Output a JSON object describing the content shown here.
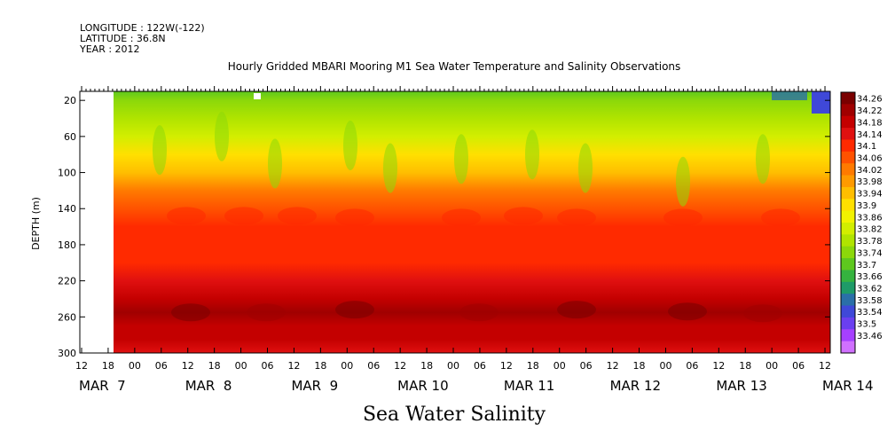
{
  "header": {
    "longitude": "LONGITUDE : 122W(-122)",
    "latitude": "LATITUDE : 36.8N",
    "year": "YEAR : 2012"
  },
  "footer_label": "Sea Water Salinity",
  "chart_data": {
    "type": "heatmap",
    "title": "Hourly Gridded MBARI Mooring M1 Sea Water Temperature and Salinity Observations",
    "ylabel": "DEPTH (m)",
    "xlabel": "",
    "ylim": [
      300,
      10
    ],
    "y_ticks": [
      20,
      60,
      100,
      140,
      180,
      220,
      260,
      300
    ],
    "x_hour_ticks": [
      "12",
      "18",
      "00",
      "06",
      "12",
      "18",
      "00",
      "06",
      "12",
      "18",
      "00",
      "06",
      "12",
      "18",
      "00",
      "06",
      "12",
      "18",
      "00",
      "06",
      "12",
      "18",
      "00",
      "06",
      "12",
      "18",
      "00",
      "06",
      "12"
    ],
    "x_day_labels": [
      "MAR  7",
      "MAR  8",
      "MAR  9",
      "MAR 10",
      "MAR 11",
      "MAR 12",
      "MAR 13",
      "MAR 14"
    ],
    "data_start": "2012-03-07 18:00",
    "colorbar": {
      "levels": [
        34.26,
        34.22,
        34.18,
        34.14,
        34.1,
        34.06,
        34.02,
        33.98,
        33.94,
        33.9,
        33.86,
        33.82,
        33.78,
        33.74,
        33.7,
        33.66,
        33.62,
        33.58,
        33.54,
        33.5,
        33.46
      ],
      "colors": [
        "#7a0000",
        "#a00000",
        "#c40000",
        "#e01010",
        "#ff2a00",
        "#ff5200",
        "#ff7a00",
        "#ff9a00",
        "#ffbe00",
        "#ffe000",
        "#f2f200",
        "#d2ee00",
        "#b0e400",
        "#8cd80a",
        "#5ec81e",
        "#35b33f",
        "#1e9b68",
        "#2a6fa8",
        "#3f48d8",
        "#6a3ff0",
        "#a640ff",
        "#d070ff"
      ]
    },
    "profile": [
      {
        "depth": 10,
        "value": 33.72
      },
      {
        "depth": 20,
        "value": 33.74
      },
      {
        "depth": 40,
        "value": 33.78
      },
      {
        "depth": 60,
        "value": 33.84
      },
      {
        "depth": 80,
        "value": 33.9
      },
      {
        "depth": 100,
        "value": 33.96
      },
      {
        "depth": 120,
        "value": 34.03
      },
      {
        "depth": 140,
        "value": 34.08
      },
      {
        "depth": 160,
        "value": 34.11
      },
      {
        "depth": 180,
        "value": 34.1
      },
      {
        "depth": 200,
        "value": 34.1
      },
      {
        "depth": 220,
        "value": 34.15
      },
      {
        "depth": 240,
        "value": 34.2
      },
      {
        "depth": 255,
        "value": 34.24
      },
      {
        "depth": 270,
        "value": 34.21
      },
      {
        "depth": 285,
        "value": 34.18
      },
      {
        "depth": 300,
        "value": 34.17
      }
    ]
  }
}
